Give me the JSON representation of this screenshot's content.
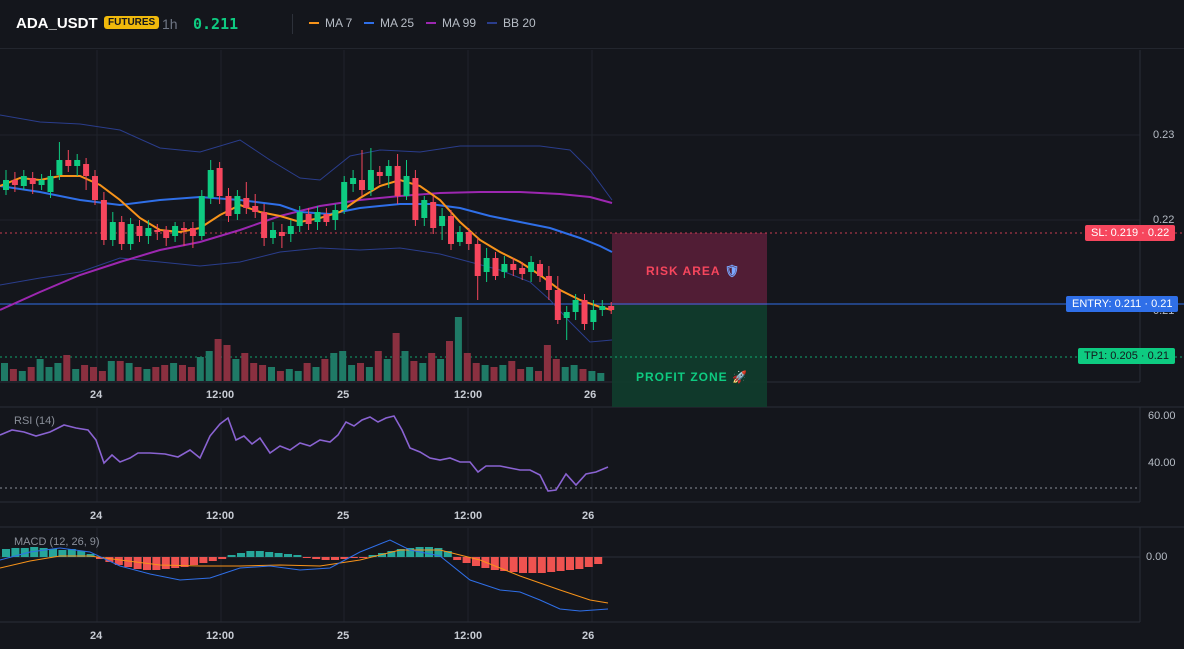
{
  "header": {
    "symbol": "ADA_USDT",
    "badge": "FUTURES",
    "timeframe": "1h",
    "price": "0.211",
    "legend": [
      {
        "label": "MA 7",
        "color": "#f7931a"
      },
      {
        "label": "MA 25",
        "color": "#2f6fe8"
      },
      {
        "label": "MA 99",
        "color": "#9c27b0"
      },
      {
        "label": "BB 20",
        "color": "#2a3d8c"
      }
    ]
  },
  "main_axis": {
    "ticks": [
      "0.23",
      "0.22",
      "0.21"
    ]
  },
  "time_axis": [
    "24",
    "12:00",
    "25",
    "12:00",
    "26"
  ],
  "zones": {
    "risk_label": "RISK AREA",
    "profit_label": "PROFIT ZONE"
  },
  "price_tags": {
    "sl": "SL: 0.219 · 0.22",
    "entry": "ENTRY: 0.211 · 0.21",
    "tp": "TP1: 0.205 · 0.21"
  },
  "rsi": {
    "label": "RSI (14)",
    "ticks": [
      "60.00",
      "40.00"
    ]
  },
  "macd": {
    "label": "MACD (12, 26, 9)",
    "ticks": [
      "0.00"
    ]
  },
  "colors": {
    "up": "#0ecb81",
    "down": "#f6465d",
    "risk": "#5c1f3a",
    "profit": "#0f3d2e",
    "entry": "#2f6fe8"
  }
}
